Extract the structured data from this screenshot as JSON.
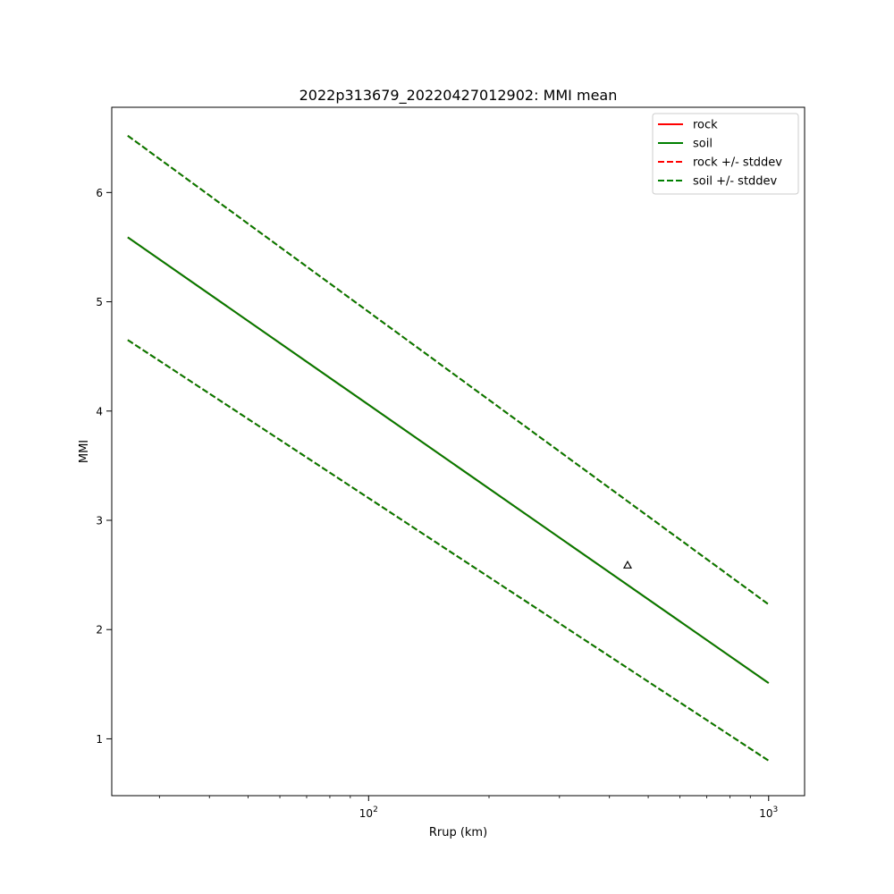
{
  "chart_data": {
    "type": "line",
    "title": "2022p313679_20220427012902: MMI mean",
    "xlabel": "Rrup (km)",
    "ylabel": "MMI",
    "xscale": "log",
    "xlim": [
      22.8,
      1230
    ],
    "ylim": [
      0.48,
      6.78
    ],
    "xticks": [
      {
        "value": 100,
        "base": "10",
        "exp": "2"
      },
      {
        "value": 1000,
        "base": "10",
        "exp": "3"
      }
    ],
    "yticks": [
      1,
      2,
      3,
      4,
      5,
      6
    ],
    "grid": false,
    "legend_position": "top-right",
    "series": [
      {
        "name": "rock",
        "style": "solid",
        "color": "#ff0000",
        "x": [
          25,
          1000
        ],
        "y": [
          5.59,
          1.51
        ]
      },
      {
        "name": "soil",
        "style": "solid",
        "color": "#007f00",
        "x": [
          25,
          1000
        ],
        "y": [
          5.59,
          1.51
        ]
      },
      {
        "name": "rock +/- stddev",
        "style": "dashed",
        "color": "#ff0000",
        "x": [
          25,
          1000
        ],
        "y_upper": [
          6.52,
          2.23
        ],
        "y_lower": [
          4.65,
          0.8
        ]
      },
      {
        "name": "soil +/- stddev",
        "style": "dashed",
        "color": "#007f00",
        "x": [
          25,
          1000
        ],
        "y_upper": [
          6.52,
          2.23
        ],
        "y_lower": [
          4.65,
          0.8
        ]
      }
    ],
    "observations": [
      {
        "x": 444,
        "y": 2.59,
        "marker": "triangle-open"
      }
    ]
  }
}
